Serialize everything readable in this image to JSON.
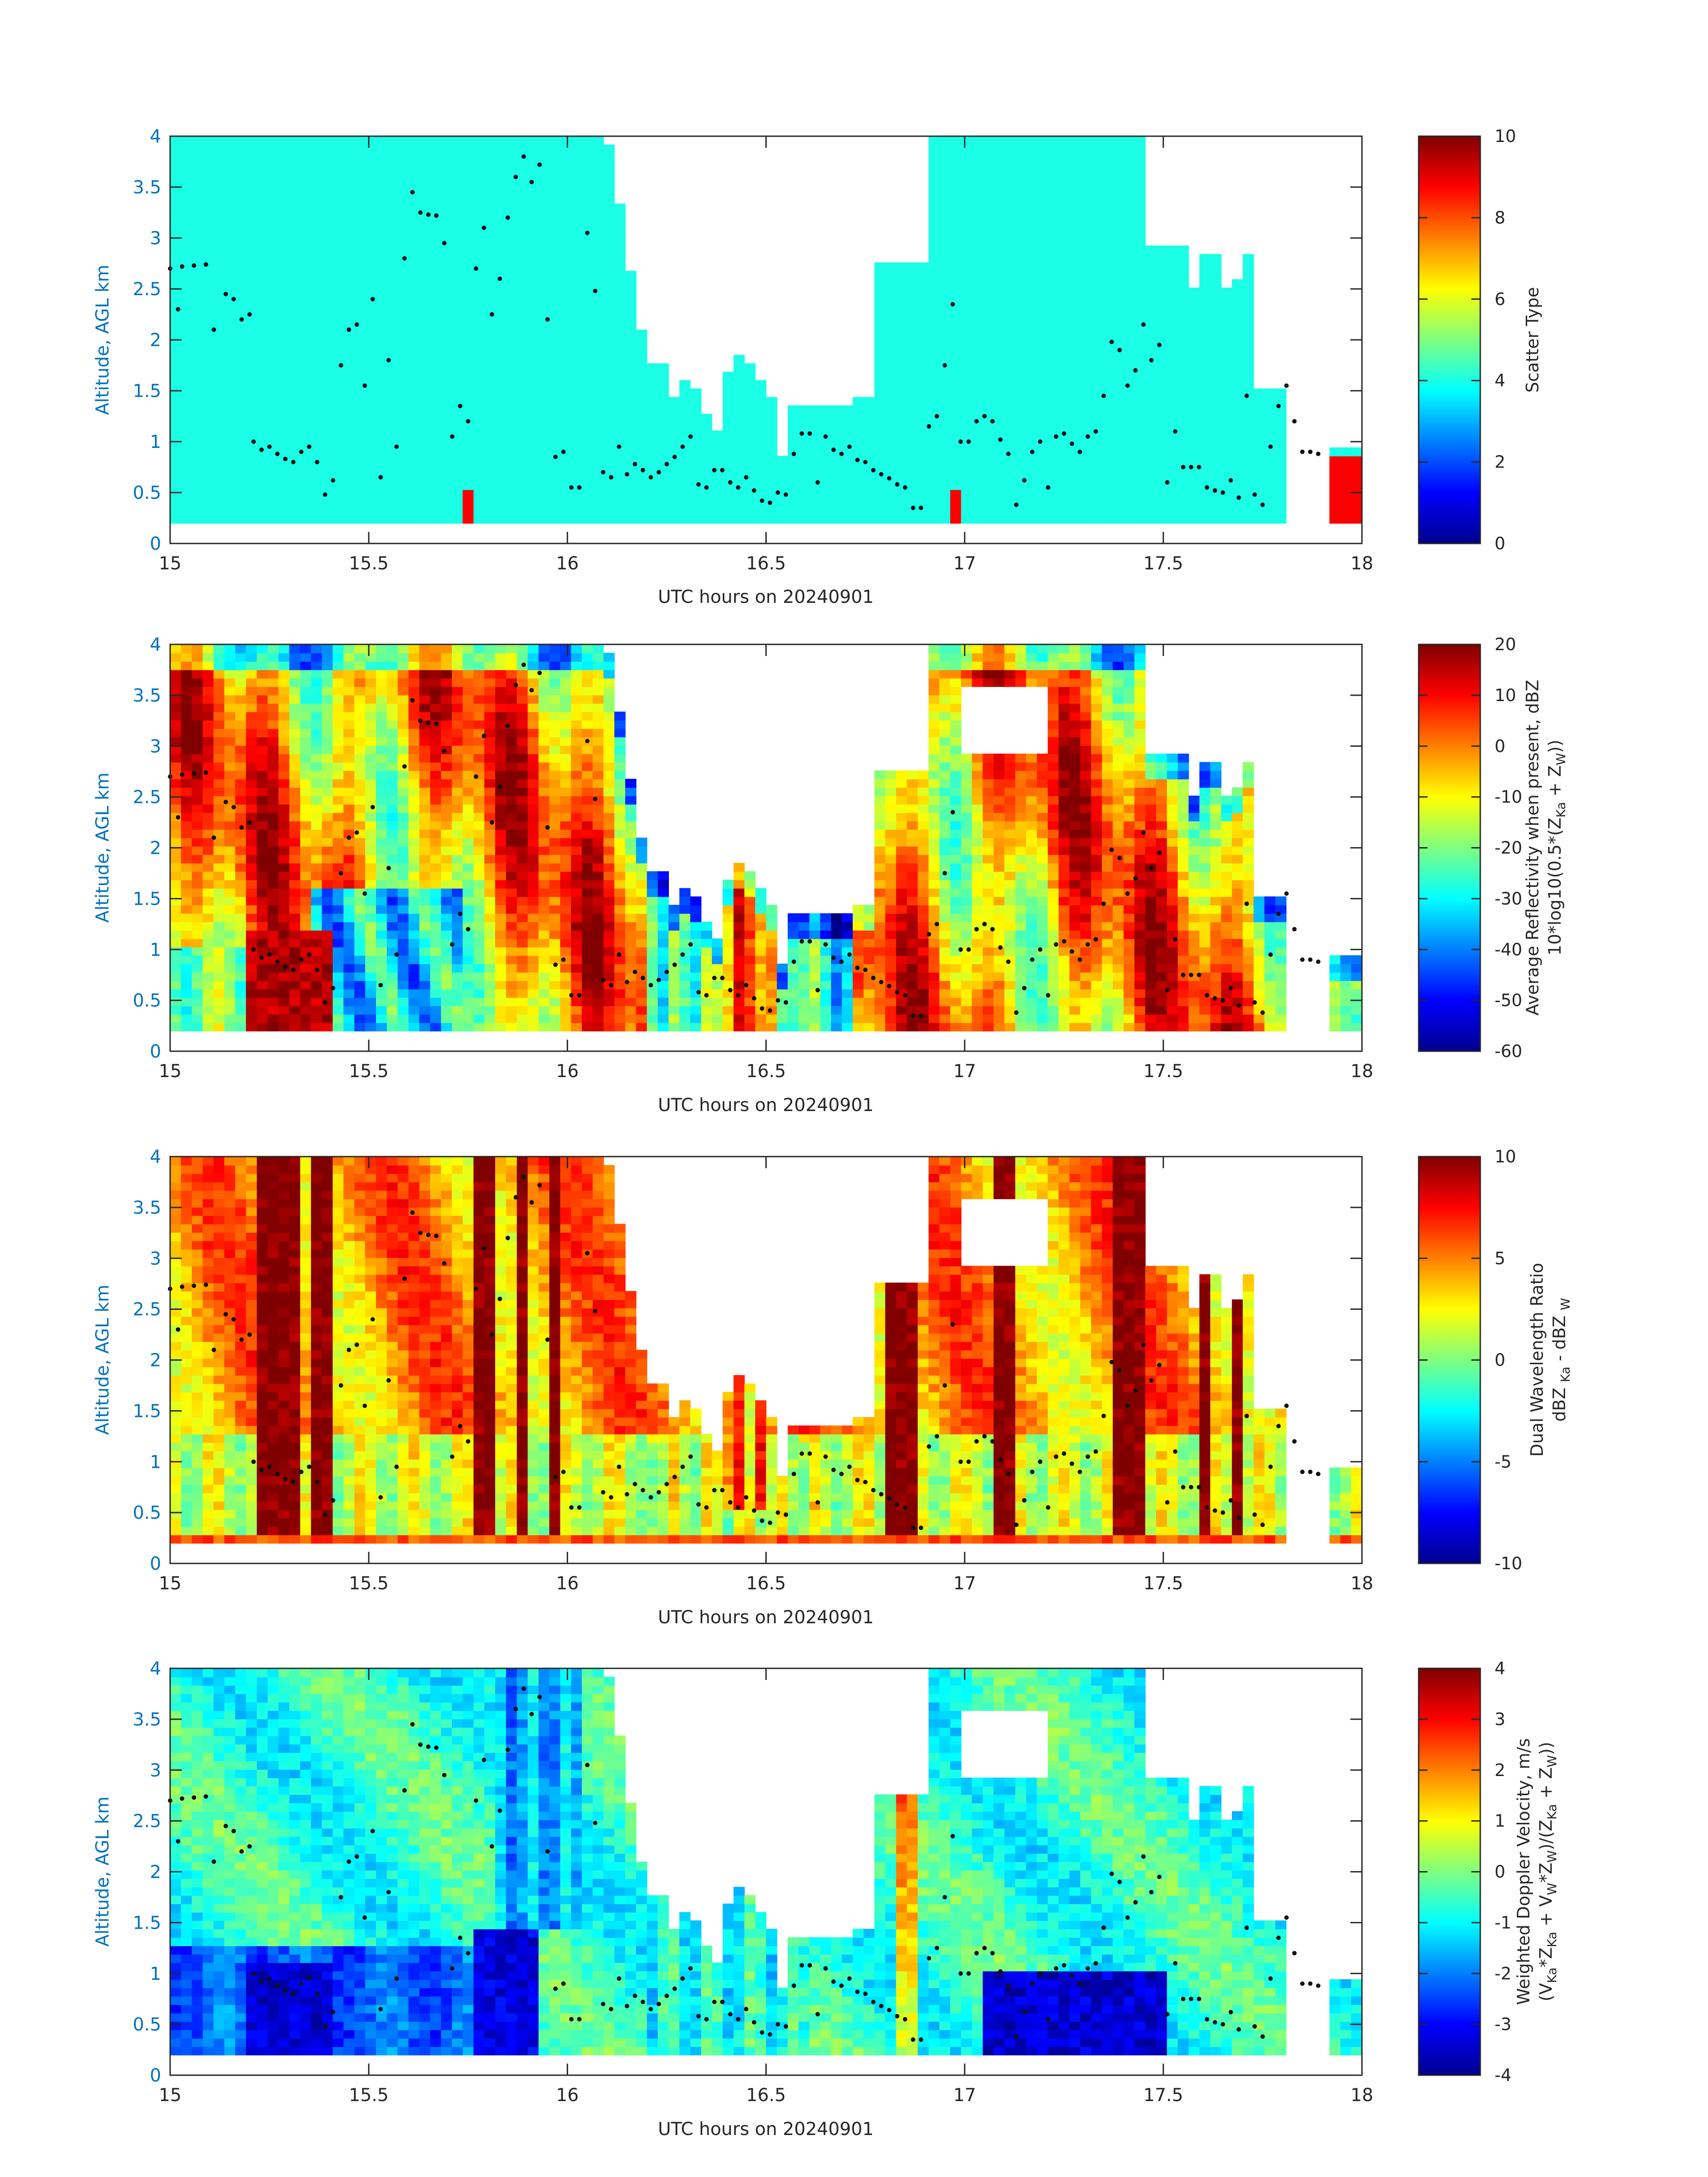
{
  "figure": {
    "xlabel": "UTC hours on 20240901",
    "ylabel": "Altitude, AGL km"
  },
  "colors": {
    "axis_text": "#0072BD",
    "axis_line": "#262626",
    "cloud_mask": "#1CFFD8",
    "echo_red": "#F5400A",
    "dot": "#111111"
  },
  "chart_data": [
    {
      "type": "heatmap",
      "panel": "scatter-type",
      "xlim": [
        15,
        18
      ],
      "ylim": [
        0,
        4
      ],
      "x_ticks": [
        "15",
        "15.5",
        "16",
        "16.5",
        "17",
        "17.5",
        "18"
      ],
      "y_ticks": [
        "0",
        "0.5",
        "1",
        "1.5",
        "2",
        "2.5",
        "3",
        "3.5",
        "4"
      ],
      "colorbar": {
        "label": "Scatter Type",
        "range": [
          0,
          10
        ],
        "ticks": [
          "0",
          "2",
          "4",
          "6",
          "8",
          "10"
        ]
      }
    },
    {
      "type": "heatmap",
      "panel": "reflectivity",
      "xlim": [
        15,
        18
      ],
      "ylim": [
        0,
        4
      ],
      "x_ticks": [
        "15",
        "15.5",
        "16",
        "16.5",
        "17",
        "17.5",
        "18"
      ],
      "y_ticks": [
        "0",
        "0.5",
        "1",
        "1.5",
        "2",
        "2.5",
        "3",
        "3.5",
        "4"
      ],
      "colorbar": {
        "label": "Average Reflectivity when present, dBZ",
        "label2": "10*log10(0.5*(Z",
        "label2_parts": [
          "10*log10(0.5*(Z",
          "Ka",
          " + Z",
          "W",
          "))"
        ],
        "range": [
          -60,
          20
        ],
        "ticks": [
          "-60",
          "-50",
          "-40",
          "-30",
          "-20",
          "-10",
          "0",
          "10",
          "20"
        ]
      }
    },
    {
      "type": "heatmap",
      "panel": "dwr",
      "xlim": [
        15,
        18
      ],
      "ylim": [
        0,
        4
      ],
      "x_ticks": [
        "15",
        "15.5",
        "16",
        "16.5",
        "17",
        "17.5",
        "18"
      ],
      "y_ticks": [
        "0",
        "0.5",
        "1",
        "1.5",
        "2",
        "2.5",
        "3",
        "3.5",
        "4"
      ],
      "colorbar": {
        "label": "Dual Wavelength Ratio",
        "label2_parts": [
          "dBZ ",
          "Ka",
          " - dBZ ",
          "W"
        ],
        "range": [
          -10,
          10
        ],
        "ticks": [
          "-10",
          "-5",
          "0",
          "5",
          "10"
        ]
      }
    },
    {
      "type": "heatmap",
      "panel": "doppler",
      "xlim": [
        15,
        18
      ],
      "ylim": [
        0,
        4
      ],
      "x_ticks": [
        "15",
        "15.5",
        "16",
        "16.5",
        "17",
        "17.5",
        "18"
      ],
      "y_ticks": [
        "0",
        "0.5",
        "1",
        "1.5",
        "2",
        "2.5",
        "3",
        "3.5",
        "4"
      ],
      "colorbar": {
        "label": "Weighted Doppler Velocity, m/s",
        "label2_parts": [
          "(V",
          "Ka",
          "*Z",
          "Ka",
          " + V",
          "W",
          "*Z",
          "W",
          ")/(Z",
          "Ka",
          " + Z",
          "W",
          "))"
        ],
        "range": [
          -4,
          4
        ],
        "ticks": [
          "-4",
          "-3",
          "-2",
          "-1",
          "0",
          "1",
          "2",
          "3",
          "4"
        ]
      }
    }
  ],
  "cloud_base_points": [
    [
      15.0,
      2.7
    ],
    [
      15.03,
      2.72
    ],
    [
      15.06,
      2.73
    ],
    [
      15.09,
      2.74
    ],
    [
      15.02,
      2.3
    ],
    [
      15.11,
      2.1
    ],
    [
      15.14,
      2.45
    ],
    [
      15.16,
      2.4
    ],
    [
      15.18,
      2.2
    ],
    [
      15.2,
      2.25
    ],
    [
      15.21,
      1.0
    ],
    [
      15.23,
      0.92
    ],
    [
      15.25,
      0.95
    ],
    [
      15.27,
      0.88
    ],
    [
      15.29,
      0.83
    ],
    [
      15.31,
      0.8
    ],
    [
      15.33,
      0.9
    ],
    [
      15.35,
      0.95
    ],
    [
      15.37,
      0.8
    ],
    [
      15.39,
      0.48
    ],
    [
      15.41,
      0.62
    ],
    [
      15.43,
      1.75
    ],
    [
      15.45,
      2.1
    ],
    [
      15.47,
      2.15
    ],
    [
      15.49,
      1.55
    ],
    [
      15.51,
      2.4
    ],
    [
      15.53,
      0.65
    ],
    [
      15.55,
      1.8
    ],
    [
      15.57,
      0.95
    ],
    [
      15.59,
      2.8
    ],
    [
      15.61,
      3.45
    ],
    [
      15.63,
      3.25
    ],
    [
      15.65,
      3.23
    ],
    [
      15.67,
      3.22
    ],
    [
      15.69,
      2.95
    ],
    [
      15.71,
      1.05
    ],
    [
      15.73,
      1.35
    ],
    [
      15.75,
      1.2
    ],
    [
      15.77,
      2.7
    ],
    [
      15.79,
      3.1
    ],
    [
      15.81,
      2.25
    ],
    [
      15.83,
      2.6
    ],
    [
      15.85,
      3.2
    ],
    [
      15.87,
      3.6
    ],
    [
      15.89,
      3.8
    ],
    [
      15.91,
      3.55
    ],
    [
      15.93,
      3.72
    ],
    [
      15.95,
      2.2
    ],
    [
      15.97,
      0.85
    ],
    [
      15.99,
      0.9
    ],
    [
      16.01,
      0.55
    ],
    [
      16.03,
      0.55
    ],
    [
      16.05,
      3.05
    ],
    [
      16.07,
      2.48
    ],
    [
      16.09,
      0.7
    ],
    [
      16.11,
      0.65
    ],
    [
      16.13,
      0.95
    ],
    [
      16.15,
      0.68
    ],
    [
      16.17,
      0.78
    ],
    [
      16.19,
      0.72
    ],
    [
      16.21,
      0.65
    ],
    [
      16.23,
      0.7
    ],
    [
      16.25,
      0.78
    ],
    [
      16.27,
      0.85
    ],
    [
      16.29,
      0.95
    ],
    [
      16.31,
      1.05
    ],
    [
      16.33,
      0.58
    ],
    [
      16.35,
      0.55
    ],
    [
      16.37,
      0.72
    ],
    [
      16.39,
      0.72
    ],
    [
      16.41,
      0.6
    ],
    [
      16.43,
      0.55
    ],
    [
      16.45,
      0.65
    ],
    [
      16.47,
      0.52
    ],
    [
      16.49,
      0.42
    ],
    [
      16.51,
      0.4
    ],
    [
      16.53,
      0.5
    ],
    [
      16.55,
      0.48
    ],
    [
      16.57,
      0.88
    ],
    [
      16.59,
      1.08
    ],
    [
      16.61,
      1.08
    ],
    [
      16.63,
      0.6
    ],
    [
      16.65,
      1.05
    ],
    [
      16.67,
      0.92
    ],
    [
      16.69,
      0.88
    ],
    [
      16.71,
      0.95
    ],
    [
      16.73,
      0.82
    ],
    [
      16.75,
      0.8
    ],
    [
      16.77,
      0.72
    ],
    [
      16.79,
      0.68
    ],
    [
      16.81,
      0.64
    ],
    [
      16.83,
      0.58
    ],
    [
      16.85,
      0.55
    ],
    [
      16.87,
      0.35
    ],
    [
      16.89,
      0.35
    ],
    [
      16.91,
      1.15
    ],
    [
      16.93,
      1.25
    ],
    [
      16.95,
      1.75
    ],
    [
      16.97,
      2.35
    ],
    [
      16.99,
      1.0
    ],
    [
      17.01,
      1.0
    ],
    [
      17.03,
      1.2
    ],
    [
      17.05,
      1.25
    ],
    [
      17.07,
      1.2
    ],
    [
      17.09,
      1.02
    ],
    [
      17.11,
      0.88
    ],
    [
      17.13,
      0.38
    ],
    [
      17.15,
      0.62
    ],
    [
      17.17,
      0.9
    ],
    [
      17.19,
      1.0
    ],
    [
      17.21,
      0.55
    ],
    [
      17.23,
      1.05
    ],
    [
      17.25,
      1.08
    ],
    [
      17.27,
      0.98
    ],
    [
      17.29,
      0.9
    ],
    [
      17.31,
      1.05
    ],
    [
      17.33,
      1.1
    ],
    [
      17.35,
      1.45
    ],
    [
      17.37,
      1.98
    ],
    [
      17.39,
      1.9
    ],
    [
      17.41,
      1.55
    ],
    [
      17.43,
      1.7
    ],
    [
      17.45,
      2.15
    ],
    [
      17.47,
      1.8
    ],
    [
      17.49,
      1.95
    ],
    [
      17.51,
      0.6
    ],
    [
      17.53,
      1.1
    ],
    [
      17.55,
      0.75
    ],
    [
      17.57,
      0.75
    ],
    [
      17.59,
      0.75
    ],
    [
      17.61,
      0.55
    ],
    [
      17.63,
      0.52
    ],
    [
      17.65,
      0.5
    ],
    [
      17.67,
      0.62
    ],
    [
      17.69,
      0.45
    ],
    [
      17.71,
      1.45
    ],
    [
      17.73,
      0.48
    ],
    [
      17.75,
      0.38
    ],
    [
      17.77,
      0.95
    ],
    [
      17.79,
      1.35
    ],
    [
      17.81,
      1.55
    ],
    [
      17.83,
      1.2
    ],
    [
      17.85,
      0.9
    ],
    [
      17.87,
      0.9
    ],
    [
      17.89,
      0.88
    ]
  ]
}
